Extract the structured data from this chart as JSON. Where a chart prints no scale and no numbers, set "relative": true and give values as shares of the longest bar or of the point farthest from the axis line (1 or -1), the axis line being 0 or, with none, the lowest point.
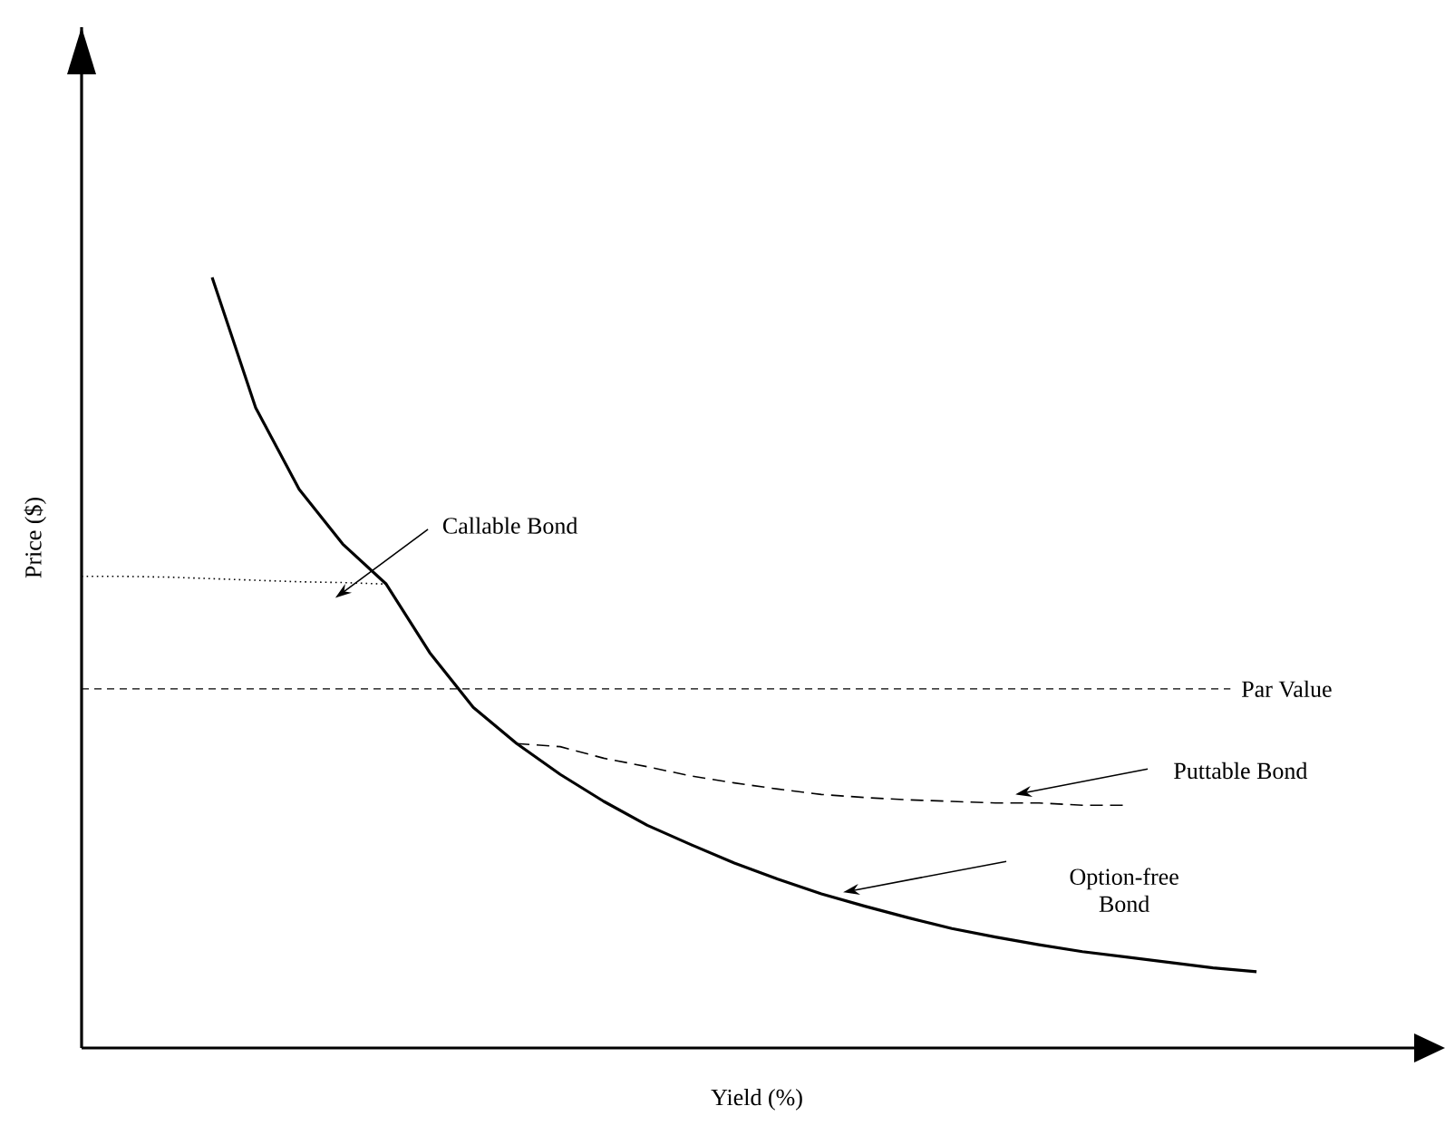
{
  "chart_data": {
    "type": "line",
    "relative": true,
    "xlabel": "Yield (%)",
    "ylabel": "Price ($)",
    "categories": [
      null,
      null,
      null,
      null,
      null,
      null,
      null,
      null,
      null,
      null,
      null,
      null,
      null,
      null,
      null,
      null,
      null,
      null,
      null,
      null,
      null,
      null,
      null,
      null,
      null,
      null,
      null,
      null,
      null,
      null,
      null,
      null
    ],
    "series": [
      {
        "name": "Option-free Bond",
        "color": "#000000",
        "line_style": "solid",
        "values": [
          null,
          null,
          null,
          1.0,
          0.831,
          0.725,
          0.654,
          0.602,
          0.513,
          0.442,
          0.395,
          0.355,
          0.32,
          0.289,
          0.264,
          0.24,
          0.219,
          0.2,
          0.184,
          0.169,
          0.155,
          0.144,
          0.134,
          0.125,
          0.118,
          0.111,
          0.104,
          0.099,
          null,
          null,
          null,
          null
        ]
      },
      {
        "name": "Callable Bond",
        "color": "#000000",
        "line_style": "dotted",
        "values": [
          0.612,
          0.612,
          0.611,
          0.609,
          0.607,
          0.605,
          0.604,
          0.602,
          null,
          null,
          null,
          null,
          null,
          null,
          null,
          null,
          null,
          null,
          null,
          null,
          null,
          null,
          null,
          null,
          null,
          null,
          null,
          null,
          null,
          null,
          null,
          null
        ]
      },
      {
        "name": "Puttable Bond",
        "color": "#000000",
        "line_style": "dashed",
        "values": [
          null,
          null,
          null,
          null,
          null,
          null,
          null,
          null,
          null,
          null,
          0.395,
          0.391,
          0.376,
          0.365,
          0.353,
          0.344,
          0.336,
          0.329,
          0.325,
          0.322,
          0.32,
          0.318,
          0.318,
          0.315,
          0.315,
          null,
          null,
          null,
          null,
          null,
          null,
          null
        ]
      }
    ],
    "ref_lines": [
      {
        "axis": "y",
        "value": 0.466,
        "label": "Par Value",
        "line_style": "dashed",
        "color": "#000000"
      }
    ]
  }
}
